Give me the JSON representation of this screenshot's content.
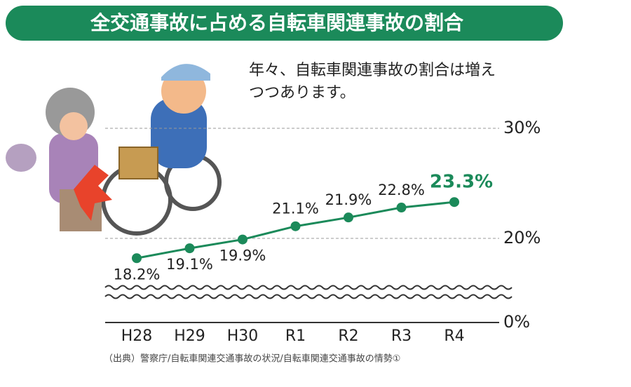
{
  "chart_data": {
    "type": "line",
    "title": "全交通事故に占める自転車関連事故の割合",
    "annotation": [
      "年々、自転車関連事故の割合は増え",
      "つつあります。"
    ],
    "source": "（出典）警察庁/自転車関連交通事故の状況/自転車関連交通事故の情勢①",
    "categories": [
      "H28",
      "H29",
      "H30",
      "R1",
      "R2",
      "R3",
      "R4"
    ],
    "series": [
      {
        "color": "#1b8a5a",
        "values": [
          18.2,
          19.1,
          19.9,
          21.1,
          21.9,
          22.8,
          23.3
        ],
        "value_labels": [
          "18.2%",
          "19.1%",
          "19.9%",
          "21.1%",
          "21.9%",
          "22.8%",
          "23.3%"
        ]
      }
    ],
    "ylim": [
      0,
      30
    ],
    "yticks": [
      {
        "value": 0,
        "label": "0%"
      },
      {
        "value": 20,
        "label": "20%"
      },
      {
        "value": 30,
        "label": "30%"
      }
    ],
    "axis_break": true,
    "grid": true
  }
}
